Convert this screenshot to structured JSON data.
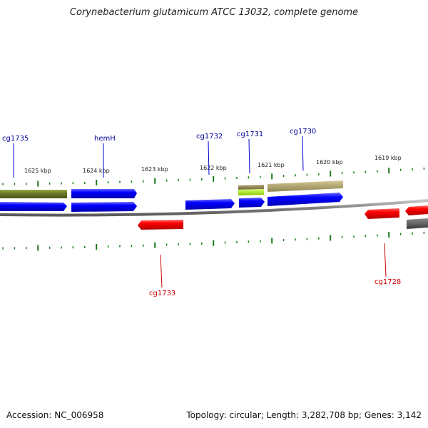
{
  "title": "Corynebacterium glutamicum ATCC 13032, complete genome",
  "footer": {
    "accession": "Accession: NC_006958",
    "summary": "Topology: circular; Length: 3,282,708 bp; Genes: 3,142"
  },
  "colors": {
    "forward": "#0000ff",
    "reverse": "#ff0000",
    "forward_label": "#000099",
    "reverse_label": "#cc0000",
    "olive_feature": "#6b7a2a",
    "khaki_feature": "#b8ad78",
    "lime_feature": "#a6e000",
    "gray_feature": "#555555",
    "ticks": "#1a7a1a",
    "backbone": "#808080"
  },
  "kbp_labels": [
    "1625 kbp",
    "1624 kbp",
    "1623 kbp",
    "1622 kbp",
    "1621 kbp",
    "1620 kbp",
    "1619 kbp"
  ],
  "gene_labels": {
    "forward": [
      "cg1735",
      "hemH",
      "cg1732",
      "cg1731",
      "cg1730"
    ],
    "reverse": [
      "cg1733",
      "cg1728"
    ]
  }
}
